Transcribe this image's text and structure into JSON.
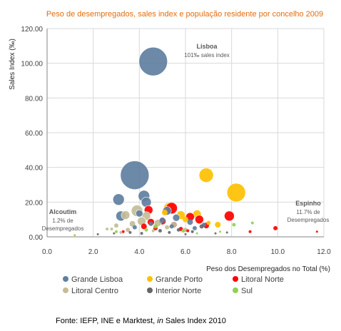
{
  "chart_data": {
    "type": "scatter",
    "variant": "bubble",
    "title": "Peso de desempregados, sales index e população residente por concelho 2009",
    "xlabel": "Peso dos Desempregados no Total (%)",
    "ylabel": "Sales Index (‰)",
    "xlim": [
      0,
      12
    ],
    "ylim": [
      0,
      120
    ],
    "x_ticks": [
      "0.0",
      "2.0",
      "4.0",
      "6.0",
      "8.0",
      "10.0",
      "12.0"
    ],
    "y_ticks": [
      "0.00",
      "20.00",
      "40.00",
      "60.00",
      "80.00",
      "100.00",
      "120.00"
    ],
    "grid": true,
    "legend_position": "bottom",
    "annotations": [
      {
        "title": "Lisboa",
        "text": [
          "101‰ sales index"
        ]
      },
      {
        "title": "Alcoutim",
        "text": [
          "1.2% de",
          "Desempregados"
        ]
      },
      {
        "title": "Espinho",
        "text": [
          "11.7% de",
          "Desempregados"
        ]
      }
    ],
    "source": "Fonte: IEFP, INE e Marktest, in Sales Index 2010",
    "series": [
      {
        "name": "Grande Lisboa",
        "color": "#5f7f9f",
        "points": [
          {
            "x": 4.6,
            "y": 101,
            "size": 20
          },
          {
            "x": 3.8,
            "y": 35.5,
            "size": 20
          },
          {
            "x": 4.2,
            "y": 23.5,
            "size": 8
          },
          {
            "x": 3.1,
            "y": 21.5,
            "size": 8
          },
          {
            "x": 4.3,
            "y": 20,
            "size": 7
          },
          {
            "x": 3.2,
            "y": 12,
            "size": 7
          },
          {
            "x": 5.2,
            "y": 15,
            "size": 6
          },
          {
            "x": 4.0,
            "y": 13.5,
            "size": 5
          },
          {
            "x": 5.6,
            "y": 11,
            "size": 5
          },
          {
            "x": 5.0,
            "y": 9.5,
            "size": 4
          },
          {
            "x": 6.2,
            "y": 8.5,
            "size": 4
          },
          {
            "x": 4.5,
            "y": 7.5,
            "size": 3
          },
          {
            "x": 6.8,
            "y": 7,
            "size": 3
          },
          {
            "x": 5.4,
            "y": 6,
            "size": 3
          },
          {
            "x": 3.8,
            "y": 5.5,
            "size": 3
          },
          {
            "x": 6.4,
            "y": 5,
            "size": 3
          }
        ]
      },
      {
        "name": "Grande Porto",
        "color": "#ffc000",
        "points": [
          {
            "x": 8.2,
            "y": 25.5,
            "size": 13
          },
          {
            "x": 6.9,
            "y": 35.5,
            "size": 10
          },
          {
            "x": 5.3,
            "y": 16.5,
            "size": 8
          },
          {
            "x": 5.8,
            "y": 12.5,
            "size": 6
          },
          {
            "x": 6.5,
            "y": 13,
            "size": 6
          },
          {
            "x": 7.4,
            "y": 7,
            "size": 4
          },
          {
            "x": 5.1,
            "y": 14,
            "size": 4
          },
          {
            "x": 6.0,
            "y": 10,
            "size": 4
          },
          {
            "x": 7.0,
            "y": 8,
            "size": 3
          }
        ]
      },
      {
        "name": "Litoral Norte",
        "color": "#ff0000",
        "points": [
          {
            "x": 5.4,
            "y": 16.5,
            "size": 8
          },
          {
            "x": 7.9,
            "y": 12,
            "size": 7
          },
          {
            "x": 4.4,
            "y": 15.5,
            "size": 6
          },
          {
            "x": 6.2,
            "y": 11.5,
            "size": 6
          },
          {
            "x": 6.6,
            "y": 10,
            "size": 6
          },
          {
            "x": 4.5,
            "y": 8.5,
            "size": 5
          },
          {
            "x": 5.0,
            "y": 9,
            "size": 5
          },
          {
            "x": 5.5,
            "y": 7,
            "size": 4
          },
          {
            "x": 4.2,
            "y": 6,
            "size": 4
          },
          {
            "x": 6.9,
            "y": 6.5,
            "size": 4
          },
          {
            "x": 4.7,
            "y": 5,
            "size": 3
          },
          {
            "x": 5.8,
            "y": 4.5,
            "size": 3
          },
          {
            "x": 9.9,
            "y": 5,
            "size": 3
          },
          {
            "x": 8.8,
            "y": 3,
            "size": 2
          },
          {
            "x": 11.7,
            "y": 3,
            "size": 1.5
          },
          {
            "x": 3.3,
            "y": 3,
            "size": 2
          },
          {
            "x": 6.1,
            "y": 3.5,
            "size": 2
          }
        ]
      },
      {
        "name": "Litoral Centro",
        "color": "#c4bd97",
        "points": [
          {
            "x": 3.9,
            "y": 15,
            "size": 8
          },
          {
            "x": 3.4,
            "y": 12.5,
            "size": 6
          },
          {
            "x": 4.3,
            "y": 12,
            "size": 6
          },
          {
            "x": 4.1,
            "y": 9,
            "size": 6
          },
          {
            "x": 4.8,
            "y": 8,
            "size": 5
          },
          {
            "x": 3.7,
            "y": 7.5,
            "size": 4
          },
          {
            "x": 5.5,
            "y": 7,
            "size": 4
          },
          {
            "x": 3.0,
            "y": 6.5,
            "size": 3
          },
          {
            "x": 5.2,
            "y": 5.5,
            "size": 3
          },
          {
            "x": 2.6,
            "y": 4.5,
            "size": 2
          },
          {
            "x": 2.8,
            "y": 4.5,
            "size": 2
          },
          {
            "x": 6.0,
            "y": 4,
            "size": 3
          },
          {
            "x": 3.5,
            "y": 4,
            "size": 3
          },
          {
            "x": 4.6,
            "y": 3.5,
            "size": 2
          },
          {
            "x": 3.2,
            "y": 2.5,
            "size": 2
          }
        ]
      },
      {
        "name": "Interior Norte",
        "color": "#666666",
        "points": [
          {
            "x": 6.7,
            "y": 6,
            "size": 3
          },
          {
            "x": 5.7,
            "y": 4,
            "size": 2.5
          },
          {
            "x": 4.9,
            "y": 3.5,
            "size": 2.5
          },
          {
            "x": 6.3,
            "y": 3,
            "size": 2
          },
          {
            "x": 3.6,
            "y": 2.5,
            "size": 2
          },
          {
            "x": 4.1,
            "y": 2,
            "size": 2
          },
          {
            "x": 5.3,
            "y": 2.5,
            "size": 2
          },
          {
            "x": 7.3,
            "y": 2,
            "size": 1.5
          },
          {
            "x": 7.8,
            "y": 2.5,
            "size": 1.5
          },
          {
            "x": 2.9,
            "y": 2,
            "size": 1.5
          },
          {
            "x": 2.2,
            "y": 1.5,
            "size": 1.5
          },
          {
            "x": 6.0,
            "y": 1.5,
            "size": 1.5
          }
        ]
      },
      {
        "name": "Sul",
        "color": "#92d050",
        "points": [
          {
            "x": 8.1,
            "y": 7,
            "size": 2.5
          },
          {
            "x": 8.9,
            "y": 8,
            "size": 2
          },
          {
            "x": 4.7,
            "y": 6,
            "size": 3
          },
          {
            "x": 5.9,
            "y": 3.5,
            "size": 2.5
          },
          {
            "x": 7.5,
            "y": 3,
            "size": 1.5
          },
          {
            "x": 3.0,
            "y": 3,
            "size": 2
          },
          {
            "x": 1.2,
            "y": 1,
            "size": 1.5
          },
          {
            "x": 4.3,
            "y": 4,
            "size": 2.5
          },
          {
            "x": 6.5,
            "y": 2,
            "size": 1.5
          }
        ]
      }
    ]
  }
}
